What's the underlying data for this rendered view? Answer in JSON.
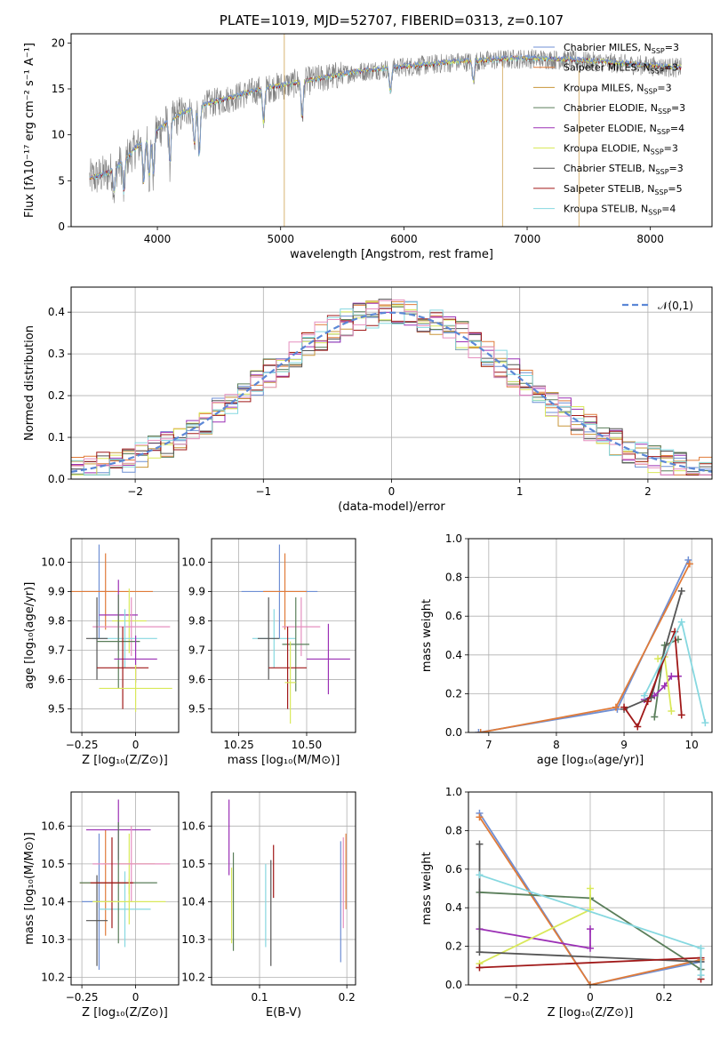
{
  "colors": {
    "Chabrier MILES": "#6f8fd4",
    "Salpeter MILES": "#e07b39",
    "Kroupa MILES": "#c8963a",
    "Chabrier ELODIE": "#5a7e5a",
    "Salpeter ELODIE": "#9b30b5",
    "Kroupa ELODIE": "#d9e85a",
    "Chabrier STELIB": "#555555",
    "Salpeter STELIB": "#a01818",
    "Kroupa STELIB": "#86d8e0",
    "pink": "#e58fbf",
    "normal_curve": "#5b87d6",
    "grid": "#b0b0b0"
  },
  "chart_data": [
    {
      "id": "spectrum",
      "type": "line",
      "title": "PLATE=1019, MJD=52707, FIBERID=0313, z=0.107",
      "xlabel": "wavelength [Angstrom, rest frame]",
      "ylabel": "Flux [fλ10⁻¹⁷ erg cm⁻² s⁻¹ A⁻¹]",
      "xlim": [
        3300,
        8500
      ],
      "ylim": [
        0,
        21
      ],
      "xticks": [
        4000,
        5000,
        6000,
        7000,
        8000
      ],
      "yticks": [
        0,
        5,
        10,
        15,
        20
      ],
      "legend_position": "right",
      "legend": [
        "Chabrier MILES, N_SSP=3",
        "Salpeter MILES, N_SSP=3",
        "Kroupa MILES, N_SSP=3",
        "Chabrier ELODIE, N_SSP=3",
        "Salpeter ELODIE, N_SSP=4",
        "Kroupa ELODIE, N_SSP=3",
        "Chabrier STELIB, N_SSP=3",
        "Salpeter STELIB, N_SSP=5",
        "Kroupa STELIB, N_SSP=4"
      ],
      "continuum": {
        "x": [
          3450,
          3600,
          3700,
          3800,
          3900,
          4000,
          4100,
          4200,
          4300,
          4400,
          4600,
          4800,
          5000,
          5200,
          5400,
          5600,
          5800,
          6000,
          6200,
          6400,
          6600,
          6800,
          7000,
          7200,
          7400,
          7600,
          7800,
          8000,
          8200
        ],
        "y": [
          5.2,
          5.8,
          6.8,
          8.2,
          9.5,
          10.5,
          11.5,
          12.3,
          12.8,
          13.3,
          14.0,
          14.8,
          15.3,
          15.8,
          16.3,
          16.8,
          17.1,
          17.4,
          17.6,
          17.9,
          18.0,
          18.2,
          18.3,
          18.2,
          18.1,
          17.9,
          17.7,
          17.5,
          17.3
        ]
      }
    },
    {
      "id": "residuals",
      "type": "bar",
      "xlabel": "(data-model)/error",
      "ylabel": "Normed distribution",
      "xlim": [
        -2.5,
        2.5
      ],
      "ylim": [
        0,
        0.46
      ],
      "xticks": [
        -2,
        -1,
        0,
        1,
        2
      ],
      "yticks": [
        0.0,
        0.1,
        0.2,
        0.3,
        0.4
      ],
      "legend_position": "top-right",
      "curve_label": "𝒩(0,1)"
    },
    {
      "id": "age-vs-Z",
      "type": "scatter",
      "xlabel": "Z [log₁₀(Z/Z⊙)]",
      "ylabel": "age  [log₁₀(age/yr)]",
      "xlim": [
        -0.3,
        0.2
      ],
      "ylim": [
        9.42,
        10.08
      ],
      "xticks": [
        -0.25,
        0.0
      ],
      "yticks": [
        9.5,
        9.6,
        9.7,
        9.8,
        9.9,
        10.0
      ],
      "points": [
        {
          "x": -0.17,
          "xerr": 0.08,
          "y": 9.9,
          "yerr": 0.16,
          "c": "Chabrier MILES"
        },
        {
          "x": -0.14,
          "xerr": 0.22,
          "y": 9.9,
          "yerr": 0.13,
          "c": "Salpeter MILES"
        },
        {
          "x": -0.08,
          "xerr": 0.09,
          "y": 9.82,
          "yerr": 0.12,
          "c": "Salpeter ELODIE"
        },
        {
          "x": -0.03,
          "xerr": 0.08,
          "y": 9.8,
          "yerr": 0.11,
          "c": "Kroupa ELODIE"
        },
        {
          "x": -0.02,
          "xerr": 0.18,
          "y": 9.78,
          "yerr": 0.1,
          "c": "pink"
        },
        {
          "x": -0.05,
          "xerr": 0.15,
          "y": 9.74,
          "yerr": 0.1,
          "c": "Kroupa STELIB"
        },
        {
          "x": -0.18,
          "xerr": 0.05,
          "y": 9.74,
          "yerr": 0.14,
          "c": "Chabrier STELIB"
        },
        {
          "x": -0.08,
          "xerr": 0.1,
          "y": 9.73,
          "yerr": 0.16,
          "c": "Chabrier ELODIE"
        },
        {
          "x": 0.0,
          "xerr": 0.1,
          "y": 9.67,
          "yerr": 0.08,
          "c": "Salpeter ELODIE"
        },
        {
          "x": -0.06,
          "xerr": 0.12,
          "y": 9.64,
          "yerr": 0.14,
          "c": "Salpeter STELIB"
        },
        {
          "x": 0.0,
          "xerr": 0.17,
          "y": 9.57,
          "yerr": 0.08,
          "c": "Kroupa ELODIE"
        }
      ]
    },
    {
      "id": "age-vs-mass",
      "type": "scatter",
      "xlabel": "mass [log₁₀(M/M⊙)]",
      "ylabel": "",
      "xlim": [
        10.15,
        10.68
      ],
      "ylim": [
        9.42,
        10.08
      ],
      "xticks": [
        10.25,
        10.5
      ],
      "tick_labels_x": [
        "10.25",
        "10.50"
      ],
      "yticks": [
        9.5,
        9.6,
        9.7,
        9.8,
        9.9,
        10.0
      ],
      "points": [
        {
          "x": 10.4,
          "xerr": 0.14,
          "y": 9.9,
          "yerr": 0.16,
          "c": "Chabrier MILES"
        },
        {
          "x": 10.42,
          "xerr": 0.08,
          "y": 9.9,
          "yerr": 0.13,
          "c": "Salpeter MILES"
        },
        {
          "x": 10.58,
          "xerr": 0.08,
          "y": 9.67,
          "yerr": 0.12,
          "c": "Salpeter ELODIE"
        },
        {
          "x": 10.48,
          "xerr": 0.07,
          "y": 9.78,
          "yerr": 0.1,
          "c": "pink"
        },
        {
          "x": 10.38,
          "xerr": 0.08,
          "y": 9.74,
          "yerr": 0.1,
          "c": "Kroupa STELIB"
        },
        {
          "x": 10.36,
          "xerr": 0.04,
          "y": 9.74,
          "yerr": 0.14,
          "c": "Chabrier STELIB"
        },
        {
          "x": 10.46,
          "xerr": 0.05,
          "y": 9.72,
          "yerr": 0.16,
          "c": "Chabrier ELODIE"
        },
        {
          "x": 10.43,
          "xerr": 0.07,
          "y": 9.64,
          "yerr": 0.14,
          "c": "Salpeter STELIB"
        },
        {
          "x": 10.44,
          "xerr": 0.02,
          "y": 9.59,
          "yerr": 0.14,
          "c": "Kroupa ELODIE"
        }
      ]
    },
    {
      "id": "weight-vs-age",
      "type": "line",
      "xlabel": "age  [log₁₀(age/yr)]",
      "ylabel": "mass weight",
      "xlim": [
        6.7,
        10.3
      ],
      "ylim": [
        0,
        1.0
      ],
      "xticks": [
        7,
        8,
        9,
        10
      ],
      "yticks": [
        0.0,
        0.2,
        0.4,
        0.6,
        0.8,
        1.0
      ],
      "series": [
        {
          "c": "Chabrier MILES",
          "x": [
            6.85,
            8.9,
            9.95
          ],
          "y": [
            0.0,
            0.12,
            0.89
          ]
        },
        {
          "c": "Salpeter MILES",
          "x": [
            6.88,
            8.88,
            9.97
          ],
          "y": [
            0.0,
            0.13,
            0.87
          ]
        },
        {
          "c": "Chabrier ELODIE",
          "x": [
            9.45,
            9.6,
            9.8
          ],
          "y": [
            0.08,
            0.45,
            0.48
          ]
        },
        {
          "c": "Salpeter ELODIE",
          "x": [
            9.3,
            9.45,
            9.6,
            9.7,
            9.8
          ],
          "y": [
            0.17,
            0.19,
            0.24,
            0.29,
            0.29
          ]
        },
        {
          "c": "Kroupa ELODIE",
          "x": [
            9.5,
            9.6,
            9.7
          ],
          "y": [
            0.38,
            0.39,
            0.11
          ]
        },
        {
          "c": "Chabrier STELIB",
          "x": [
            9.0,
            9.4,
            9.85
          ],
          "y": [
            0.12,
            0.18,
            0.73
          ]
        },
        {
          "c": "Salpeter STELIB",
          "x": [
            9.0,
            9.2,
            9.35,
            9.75,
            9.85
          ],
          "y": [
            0.13,
            0.03,
            0.16,
            0.52,
            0.09
          ]
        },
        {
          "c": "Kroupa STELIB",
          "x": [
            9.3,
            9.85,
            10.2
          ],
          "y": [
            0.19,
            0.57,
            0.05
          ]
        }
      ]
    },
    {
      "id": "mass-vs-Z",
      "type": "scatter",
      "xlabel": "Z [log₁₀(Z/Z⊙)]",
      "ylabel": "mass [log₁₀(M/M⊙)]",
      "xlim": [
        -0.3,
        0.2
      ],
      "ylim": [
        10.18,
        10.69
      ],
      "xticks": [
        -0.25,
        0.0
      ],
      "yticks": [
        10.2,
        10.3,
        10.4,
        10.5,
        10.6
      ],
      "points": [
        {
          "x": -0.17,
          "xerr": 0.08,
          "y": 10.4,
          "yerr": 0.18,
          "c": "Chabrier MILES"
        },
        {
          "x": -0.14,
          "xerr": 0.12,
          "y": 10.45,
          "yerr": 0.14,
          "c": "Salpeter MILES"
        },
        {
          "x": -0.08,
          "xerr": 0.15,
          "y": 10.59,
          "yerr": 0.08,
          "c": "Salpeter ELODIE"
        },
        {
          "x": -0.03,
          "xerr": 0.12,
          "y": 10.5,
          "yerr": 0.08,
          "c": "Kroupa ELODIE"
        },
        {
          "x": -0.02,
          "xerr": 0.18,
          "y": 10.5,
          "yerr": 0.1,
          "c": "pink"
        },
        {
          "x": -0.05,
          "xerr": 0.12,
          "y": 10.38,
          "yerr": 0.1,
          "c": "Kroupa STELIB"
        },
        {
          "x": -0.18,
          "xerr": 0.05,
          "y": 10.35,
          "yerr": 0.12,
          "c": "Chabrier STELIB"
        },
        {
          "x": -0.08,
          "xerr": 0.18,
          "y": 10.45,
          "yerr": 0.16,
          "c": "Chabrier ELODIE"
        },
        {
          "x": -0.11,
          "xerr": 0.1,
          "y": 10.45,
          "yerr": 0.12,
          "c": "Salpeter STELIB"
        },
        {
          "x": -0.03,
          "xerr": 0.17,
          "y": 10.4,
          "yerr": 0.06,
          "c": "Kroupa ELODIE"
        }
      ]
    },
    {
      "id": "mass-vs-EBV",
      "type": "scatter",
      "xlabel": "E(B-V)",
      "ylabel": "",
      "xlim": [
        0.045,
        0.21
      ],
      "ylim": [
        10.18,
        10.69
      ],
      "xticks": [
        0.1,
        0.2
      ],
      "yticks": [
        10.2,
        10.3,
        10.4,
        10.5,
        10.6
      ],
      "points": [
        {
          "x": 0.065,
          "yerr": 0.1,
          "y": 10.57,
          "c": "Salpeter ELODIE"
        },
        {
          "x": 0.068,
          "yerr": 0.1,
          "y": 10.39,
          "c": "Kroupa ELODIE"
        },
        {
          "x": 0.07,
          "yerr": 0.13,
          "y": 10.4,
          "c": "Chabrier ELODIE"
        },
        {
          "x": 0.107,
          "yerr": 0.11,
          "y": 10.39,
          "c": "Kroupa STELIB"
        },
        {
          "x": 0.113,
          "yerr": 0.14,
          "y": 10.37,
          "c": "Chabrier STELIB"
        },
        {
          "x": 0.116,
          "yerr": 0.07,
          "y": 10.48,
          "c": "Salpeter STELIB"
        },
        {
          "x": 0.193,
          "yerr": 0.16,
          "y": 10.4,
          "c": "Chabrier MILES"
        },
        {
          "x": 0.196,
          "yerr": 0.12,
          "y": 10.45,
          "c": "pink"
        },
        {
          "x": 0.199,
          "yerr": 0.1,
          "y": 10.48,
          "c": "Salpeter MILES"
        }
      ]
    },
    {
      "id": "weight-vs-Z",
      "type": "line",
      "xlabel": "Z [log₁₀(Z/Z⊙)]",
      "ylabel": "mass weight",
      "xlim": [
        -0.33,
        0.33
      ],
      "ylim": [
        0,
        1.0
      ],
      "xticks": [
        -0.2,
        0.0,
        0.2
      ],
      "yticks": [
        0.0,
        0.2,
        0.4,
        0.6,
        0.8,
        1.0
      ],
      "series": [
        {
          "c": "Chabrier MILES",
          "x": [
            -0.3,
            0.0,
            0.3
          ],
          "y": [
            0.89,
            0.0,
            0.12
          ]
        },
        {
          "c": "Salpeter MILES",
          "x": [
            -0.3,
            0.0,
            0.3
          ],
          "y": [
            0.87,
            0.0,
            0.13
          ]
        },
        {
          "c": "Chabrier ELODIE",
          "x": [
            -0.3,
            0.0,
            0.3
          ],
          "y": [
            0.48,
            0.45,
            0.08
          ]
        },
        {
          "c": "Salpeter ELODIE",
          "x": [
            -0.3,
            0.0,
            0.0
          ],
          "y": [
            0.29,
            0.19,
            0.29
          ]
        },
        {
          "c": "Kroupa ELODIE",
          "x": [
            -0.3,
            0.0,
            0.0
          ],
          "y": [
            0.11,
            0.39,
            0.5
          ]
        },
        {
          "c": "Chabrier STELIB",
          "x": [
            -0.3,
            -0.3,
            0.3
          ],
          "y": [
            0.73,
            0.17,
            0.12
          ]
        },
        {
          "c": "Salpeter STELIB",
          "x": [
            -0.3,
            0.3,
            0.3
          ],
          "y": [
            0.09,
            0.14,
            0.03
          ]
        },
        {
          "c": "Kroupa STELIB",
          "x": [
            -0.3,
            0.3,
            0.3
          ],
          "y": [
            0.57,
            0.19,
            0.05
          ]
        }
      ]
    }
  ]
}
